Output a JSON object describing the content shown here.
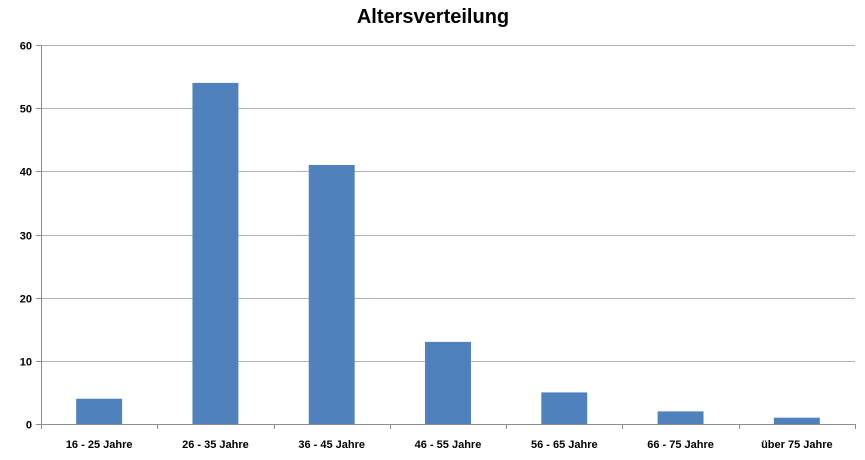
{
  "chart_data": {
    "type": "bar",
    "title": "Altersverteilung",
    "xlabel": "",
    "ylabel": "",
    "categories": [
      "16 - 25 Jahre",
      "26 - 35 Jahre",
      "36 - 45 Jahre",
      "46 - 55 Jahre",
      "56 - 65 Jahre",
      "66 - 75 Jahre",
      "über 75 Jahre"
    ],
    "values": [
      4,
      54,
      41,
      13,
      5,
      2,
      1
    ],
    "ylim": [
      0,
      60
    ],
    "yticks": [
      "0",
      "10",
      "20",
      "30",
      "40",
      "50",
      "60"
    ],
    "grid": true,
    "legend": "none",
    "bar_color": "#4F81BD",
    "grid_color": "#B3B3B3"
  }
}
